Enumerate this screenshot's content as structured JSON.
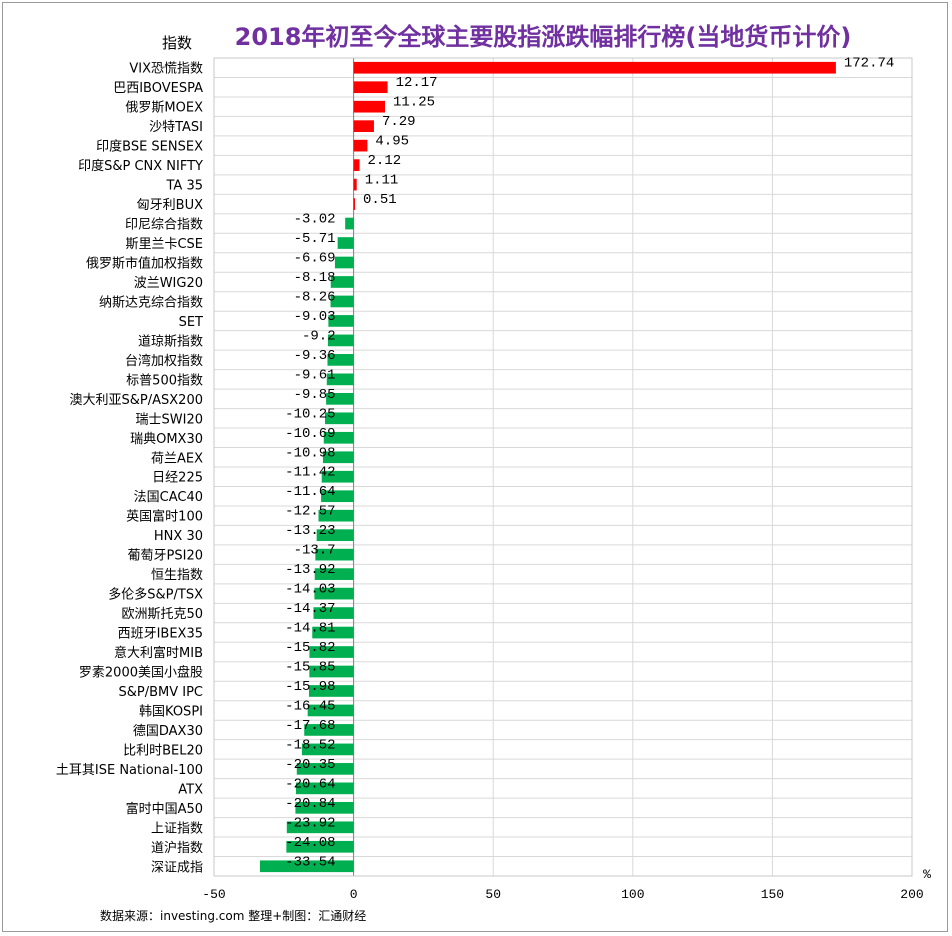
{
  "chart_data": {
    "type": "bar",
    "orientation": "horizontal",
    "title": "2018年初至今全球主要股指涨跌幅排行榜(当地货币计价)",
    "ylabel": "指数",
    "xunit": "%",
    "xlim": [
      -50,
      200
    ],
    "xticks": [
      -50,
      0,
      50,
      100,
      150,
      200
    ],
    "grid": true,
    "positive_color": "#ff0000",
    "negative_color": "#00b050",
    "categories": [
      "VIX恐慌指数",
      "巴西IBOVESPA",
      "俄罗斯MOEX",
      "沙特TASI",
      "印度BSE SENSEX",
      "印度S&P CNX NIFTY",
      "TA 35",
      "匈牙利BUX",
      "印尼综合指数",
      "斯里兰卡CSE",
      "俄罗斯市值加权指数",
      "波兰WIG20",
      "纳斯达克综合指数",
      "SET",
      "道琼斯指数",
      "台湾加权指数",
      "标普500指数",
      "澳大利亚S&P/ASX200",
      "瑞士SWI20",
      "瑞典OMX30",
      "荷兰AEX",
      "日经225",
      "法国CAC40",
      "英国富时100",
      "HNX 30",
      "葡萄牙PSI20",
      "恒生指数",
      "多伦多S&P/TSX",
      "欧洲斯托克50",
      "西班牙IBEX35",
      "意大利富时MIB",
      "罗素2000美国小盘股",
      "S&P/BMV IPC",
      "韩国KOSPI",
      "德国DAX30",
      "比利时BEL20",
      "土耳其ISE National-100",
      "ATX",
      "富时中国A50",
      "上证指数",
      "道沪指数",
      "深证成指"
    ],
    "values": [
      172.74,
      12.17,
      11.25,
      7.29,
      4.95,
      2.12,
      1.11,
      0.51,
      -3.02,
      -5.71,
      -6.69,
      -8.18,
      -8.26,
      -9.03,
      -9.2,
      -9.36,
      -9.61,
      -9.85,
      -10.25,
      -10.69,
      -10.98,
      -11.42,
      -11.64,
      -12.57,
      -13.23,
      -13.7,
      -13.92,
      -14.03,
      -14.37,
      -14.81,
      -15.82,
      -15.85,
      -15.98,
      -16.45,
      -17.68,
      -18.52,
      -20.35,
      -20.64,
      -20.84,
      -23.92,
      -24.08,
      -33.54
    ]
  },
  "footer": {
    "source": "数据来源：investing.com  整理+制图：汇通财经"
  }
}
